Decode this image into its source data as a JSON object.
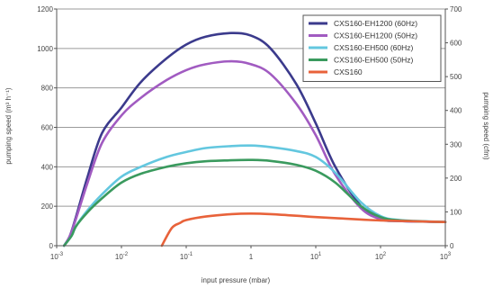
{
  "chart_data": {
    "type": "line",
    "xlabel": "input pressure (mbar)",
    "ylabel_left": "pumping speed (m³ h⁻¹)",
    "ylabel_right": "pumping speed (cfm)",
    "x_scale": "log",
    "xlim": [
      0.001,
      1000
    ],
    "ylim_left": [
      0,
      1200
    ],
    "ylim_right": [
      0,
      700
    ],
    "x_ticks": [
      {
        "value": 0.001,
        "mantissa": "10",
        "exp": "-3"
      },
      {
        "value": 0.01,
        "mantissa": "10",
        "exp": "-2"
      },
      {
        "value": 0.1,
        "mantissa": "10",
        "exp": "-1"
      },
      {
        "value": 1,
        "mantissa": "1",
        "exp": ""
      },
      {
        "value": 10,
        "mantissa": "10",
        "exp": "1"
      },
      {
        "value": 100,
        "mantissa": "10",
        "exp": "2"
      },
      {
        "value": 1000,
        "mantissa": "10",
        "exp": "3"
      }
    ],
    "y_left_ticks": [
      0,
      200,
      400,
      600,
      800,
      1000,
      1200
    ],
    "y_right_ticks": [
      0,
      100,
      200,
      300,
      400,
      500,
      600,
      700
    ],
    "grid": "horizontal",
    "legend_position": "top-right",
    "series": [
      {
        "name": "CXS160-EH1200 (60Hz)",
        "color": "#3b3a8c",
        "points": [
          [
            0.0013,
            0
          ],
          [
            0.0016,
            50
          ],
          [
            0.002,
            150
          ],
          [
            0.003,
            350
          ],
          [
            0.005,
            570
          ],
          [
            0.01,
            700
          ],
          [
            0.02,
            830
          ],
          [
            0.05,
            950
          ],
          [
            0.1,
            1020
          ],
          [
            0.2,
            1060
          ],
          [
            0.5,
            1078
          ],
          [
            1,
            1065
          ],
          [
            2,
            1000
          ],
          [
            5,
            820
          ],
          [
            10,
            620
          ],
          [
            20,
            400
          ],
          [
            50,
            200
          ],
          [
            100,
            135
          ],
          [
            200,
            125
          ],
          [
            1000,
            120
          ]
        ]
      },
      {
        "name": "CXS160-EH1200 (50Hz)",
        "color": "#a15bc1",
        "points": [
          [
            0.0013,
            0
          ],
          [
            0.0016,
            50
          ],
          [
            0.002,
            140
          ],
          [
            0.003,
            320
          ],
          [
            0.005,
            520
          ],
          [
            0.01,
            660
          ],
          [
            0.02,
            750
          ],
          [
            0.05,
            840
          ],
          [
            0.1,
            890
          ],
          [
            0.2,
            920
          ],
          [
            0.5,
            935
          ],
          [
            1,
            920
          ],
          [
            2,
            870
          ],
          [
            5,
            720
          ],
          [
            10,
            560
          ],
          [
            20,
            360
          ],
          [
            50,
            190
          ],
          [
            100,
            135
          ],
          [
            200,
            125
          ],
          [
            1000,
            120
          ]
        ]
      },
      {
        "name": "CXS160-EH500 (60Hz)",
        "color": "#63c7df",
        "points": [
          [
            0.0013,
            0
          ],
          [
            0.0017,
            50
          ],
          [
            0.002,
            100
          ],
          [
            0.003,
            180
          ],
          [
            0.005,
            260
          ],
          [
            0.01,
            350
          ],
          [
            0.02,
            400
          ],
          [
            0.05,
            450
          ],
          [
            0.1,
            475
          ],
          [
            0.2,
            495
          ],
          [
            0.5,
            505
          ],
          [
            1,
            508
          ],
          [
            2,
            500
          ],
          [
            5,
            480
          ],
          [
            10,
            450
          ],
          [
            20,
            370
          ],
          [
            50,
            220
          ],
          [
            100,
            150
          ],
          [
            200,
            130
          ],
          [
            1000,
            120
          ]
        ]
      },
      {
        "name": "CXS160-EH500 (50Hz)",
        "color": "#3a9a5e",
        "points": [
          [
            0.0013,
            0
          ],
          [
            0.0017,
            50
          ],
          [
            0.002,
            100
          ],
          [
            0.003,
            170
          ],
          [
            0.005,
            240
          ],
          [
            0.01,
            320
          ],
          [
            0.02,
            365
          ],
          [
            0.05,
            400
          ],
          [
            0.1,
            418
          ],
          [
            0.2,
            428
          ],
          [
            0.5,
            433
          ],
          [
            1,
            435
          ],
          [
            2,
            430
          ],
          [
            5,
            410
          ],
          [
            10,
            380
          ],
          [
            20,
            320
          ],
          [
            50,
            200
          ],
          [
            100,
            145
          ],
          [
            200,
            128
          ],
          [
            1000,
            120
          ]
        ]
      },
      {
        "name": "CXS160",
        "color": "#e8623a",
        "points": [
          [
            0.042,
            0
          ],
          [
            0.06,
            90
          ],
          [
            0.08,
            115
          ],
          [
            0.1,
            130
          ],
          [
            0.2,
            148
          ],
          [
            0.5,
            160
          ],
          [
            1,
            163
          ],
          [
            2,
            160
          ],
          [
            5,
            152
          ],
          [
            10,
            145
          ],
          [
            50,
            133
          ],
          [
            100,
            128
          ],
          [
            1000,
            120
          ]
        ]
      }
    ]
  }
}
